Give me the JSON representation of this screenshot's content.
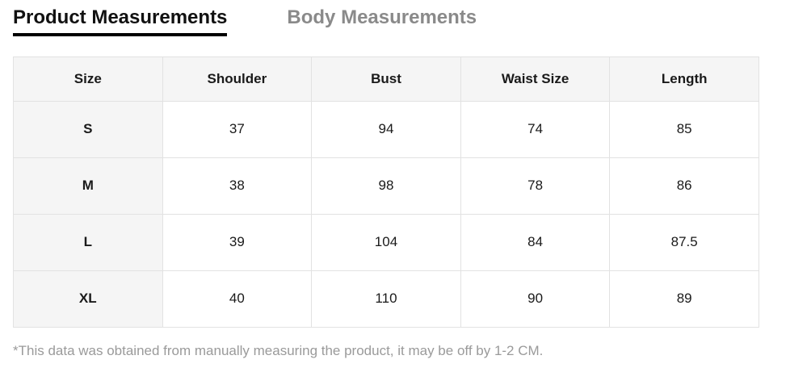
{
  "tabs": [
    {
      "label": "Product Measurements",
      "active": true
    },
    {
      "label": "Body Measurements",
      "active": false
    }
  ],
  "table": {
    "columns": [
      "Size",
      "Shoulder",
      "Bust",
      "Waist Size",
      "Length"
    ],
    "rows": [
      {
        "size": "S",
        "values": [
          "37",
          "94",
          "74",
          "85"
        ]
      },
      {
        "size": "M",
        "values": [
          "38",
          "98",
          "78",
          "86"
        ]
      },
      {
        "size": "L",
        "values": [
          "39",
          "104",
          "84",
          "87.5"
        ]
      },
      {
        "size": "XL",
        "values": [
          "40",
          "110",
          "90",
          "89"
        ]
      }
    ]
  },
  "footnote": "*This data was obtained from manually measuring the product, it may be off by 1-2 CM.",
  "colors": {
    "active_tab_text": "#111111",
    "active_tab_underline": "#000000",
    "inactive_tab_text": "#8a8a8a",
    "header_cell_background": "#f5f5f5",
    "table_border": "#e2e2e2",
    "footnote_text": "#9a9a9a"
  }
}
